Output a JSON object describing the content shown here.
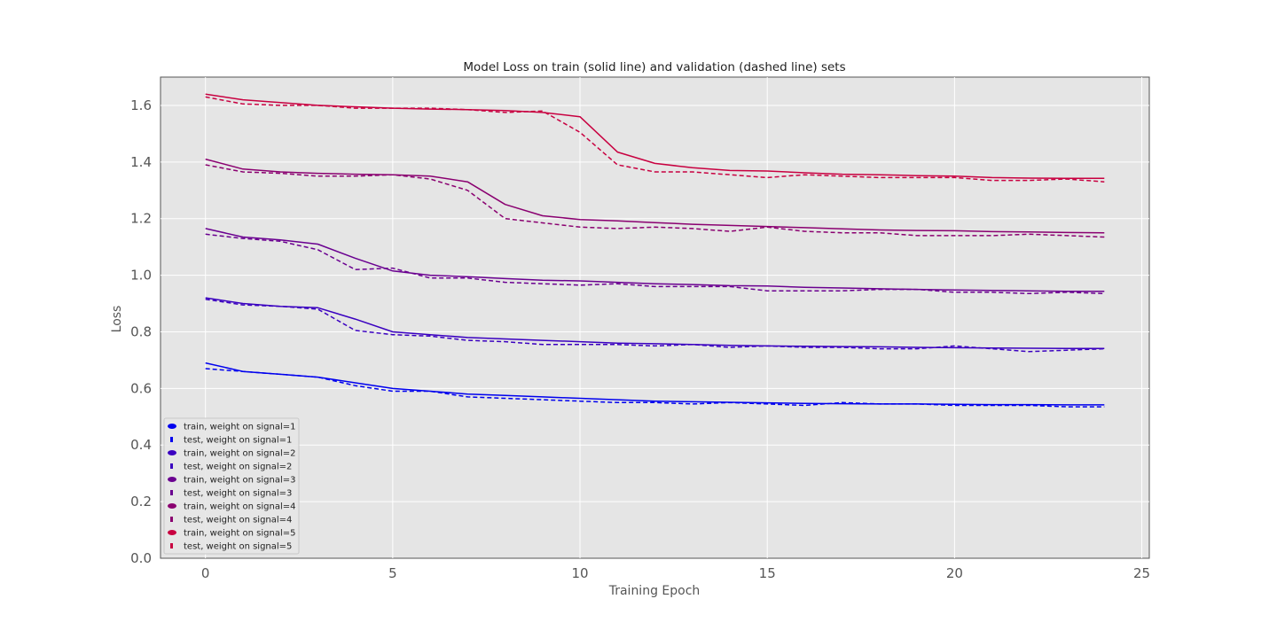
{
  "chart_data": {
    "type": "line",
    "title": "Model Loss on train (solid line) and validation (dashed line) sets",
    "xlabel": "Training Epoch",
    "ylabel": "Loss",
    "xlim": [
      -1.2,
      25.2
    ],
    "ylim": [
      0.0,
      1.7
    ],
    "xticks": [
      0,
      5,
      10,
      15,
      20,
      25
    ],
    "xtick_labels": [
      "0",
      "5",
      "10",
      "15",
      "20",
      "25"
    ],
    "yticks": [
      0.0,
      0.2,
      0.4,
      0.6,
      0.8,
      1.0,
      1.2,
      1.4,
      1.6
    ],
    "ytick_labels": [
      "0.0",
      "0.2",
      "0.4",
      "0.6",
      "0.8",
      "1.0",
      "1.2",
      "1.4",
      "1.6"
    ],
    "grid": true,
    "legend_position": "lower-left",
    "x": [
      0,
      1,
      2,
      3,
      4,
      5,
      6,
      7,
      8,
      9,
      10,
      11,
      12,
      13,
      14,
      15,
      16,
      17,
      18,
      19,
      20,
      21,
      22,
      23,
      24
    ],
    "series": [
      {
        "name": "train, weight on signal=1",
        "color": "#0000ee",
        "style": "solid",
        "values": [
          0.69,
          0.66,
          0.65,
          0.64,
          0.62,
          0.6,
          0.59,
          0.58,
          0.575,
          0.57,
          0.565,
          0.56,
          0.555,
          0.553,
          0.551,
          0.549,
          0.547,
          0.546,
          0.545,
          0.545,
          0.544,
          0.543,
          0.543,
          0.542,
          0.542
        ]
      },
      {
        "name": "test, weight on signal=1",
        "color": "#0000ee",
        "style": "dashed",
        "values": [
          0.67,
          0.66,
          0.65,
          0.64,
          0.61,
          0.59,
          0.59,
          0.57,
          0.565,
          0.56,
          0.555,
          0.55,
          0.55,
          0.545,
          0.55,
          0.545,
          0.54,
          0.55,
          0.545,
          0.545,
          0.54,
          0.54,
          0.54,
          0.535,
          0.535
        ]
      },
      {
        "name": "train, weight on signal=2",
        "color": "#3a00c0",
        "style": "solid",
        "values": [
          0.92,
          0.9,
          0.89,
          0.885,
          0.845,
          0.8,
          0.79,
          0.78,
          0.775,
          0.77,
          0.765,
          0.76,
          0.758,
          0.755,
          0.752,
          0.75,
          0.749,
          0.748,
          0.747,
          0.745,
          0.744,
          0.743,
          0.742,
          0.741,
          0.741
        ]
      },
      {
        "name": "test, weight on signal=2",
        "color": "#3a00c0",
        "style": "dashed",
        "values": [
          0.915,
          0.895,
          0.89,
          0.88,
          0.805,
          0.79,
          0.785,
          0.77,
          0.765,
          0.755,
          0.755,
          0.755,
          0.75,
          0.755,
          0.745,
          0.75,
          0.745,
          0.745,
          0.74,
          0.74,
          0.75,
          0.74,
          0.73,
          0.735,
          0.74
        ]
      },
      {
        "name": "train, weight on signal=3",
        "color": "#6a0090",
        "style": "solid",
        "values": [
          1.165,
          1.135,
          1.125,
          1.11,
          1.06,
          1.015,
          1.0,
          0.995,
          0.988,
          0.982,
          0.98,
          0.975,
          0.97,
          0.967,
          0.963,
          0.962,
          0.957,
          0.955,
          0.952,
          0.95,
          0.948,
          0.946,
          0.945,
          0.943,
          0.943
        ]
      },
      {
        "name": "test, weight on signal=3",
        "color": "#6a0090",
        "style": "dashed",
        "values": [
          1.145,
          1.13,
          1.12,
          1.09,
          1.02,
          1.025,
          0.99,
          0.99,
          0.975,
          0.97,
          0.965,
          0.97,
          0.96,
          0.96,
          0.96,
          0.945,
          0.945,
          0.945,
          0.95,
          0.95,
          0.94,
          0.94,
          0.935,
          0.94,
          0.935
        ]
      },
      {
        "name": "train, weight on signal=4",
        "color": "#8a0070",
        "style": "solid",
        "values": [
          1.41,
          1.375,
          1.365,
          1.36,
          1.357,
          1.355,
          1.35,
          1.33,
          1.25,
          1.21,
          1.197,
          1.192,
          1.186,
          1.18,
          1.176,
          1.172,
          1.168,
          1.164,
          1.16,
          1.158,
          1.157,
          1.154,
          1.153,
          1.151,
          1.15
        ]
      },
      {
        "name": "test, weight on signal=4",
        "color": "#8a0070",
        "style": "dashed",
        "values": [
          1.39,
          1.365,
          1.36,
          1.35,
          1.35,
          1.355,
          1.34,
          1.3,
          1.2,
          1.185,
          1.17,
          1.165,
          1.17,
          1.165,
          1.155,
          1.17,
          1.155,
          1.15,
          1.15,
          1.14,
          1.14,
          1.14,
          1.145,
          1.14,
          1.135
        ]
      },
      {
        "name": "train, weight on signal=5",
        "color": "#c80040",
        "style": "solid",
        "values": [
          1.64,
          1.62,
          1.61,
          1.6,
          1.595,
          1.59,
          1.587,
          1.585,
          1.582,
          1.575,
          1.56,
          1.435,
          1.395,
          1.38,
          1.37,
          1.368,
          1.362,
          1.357,
          1.355,
          1.352,
          1.35,
          1.345,
          1.343,
          1.342,
          1.342
        ]
      },
      {
        "name": "test, weight on signal=5",
        "color": "#c80040",
        "style": "dashed",
        "values": [
          1.63,
          1.605,
          1.6,
          1.6,
          1.59,
          1.59,
          1.59,
          1.585,
          1.575,
          1.58,
          1.505,
          1.39,
          1.365,
          1.365,
          1.355,
          1.345,
          1.355,
          1.35,
          1.345,
          1.345,
          1.345,
          1.335,
          1.335,
          1.34,
          1.33
        ]
      }
    ]
  }
}
